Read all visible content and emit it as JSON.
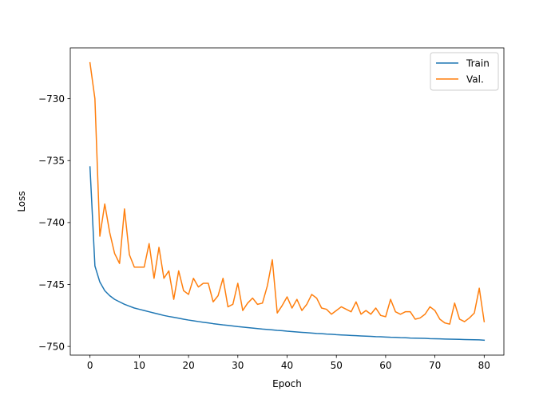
{
  "chart_data": {
    "type": "line",
    "title": "",
    "xlabel": "Epoch",
    "ylabel": "Loss",
    "xlim": [
      -4,
      84
    ],
    "ylim": [
      -750.7,
      -725.9
    ],
    "xticks": [
      0,
      10,
      20,
      30,
      40,
      50,
      60,
      70,
      80
    ],
    "xtick_labels": [
      "0",
      "10",
      "20",
      "30",
      "40",
      "50",
      "60",
      "70",
      "80"
    ],
    "yticks": [
      -730,
      -735,
      -740,
      -745,
      -750
    ],
    "ytick_labels": [
      "−730",
      "−735",
      "−740",
      "−745",
      "−750"
    ],
    "grid": false,
    "legend_position": "top-right",
    "series": [
      {
        "name": "Train",
        "color": "#1f77b4",
        "x": [
          0,
          1,
          2,
          3,
          4,
          5,
          6,
          7,
          8,
          9,
          10,
          11,
          12,
          13,
          14,
          15,
          16,
          17,
          18,
          19,
          20,
          21,
          22,
          23,
          24,
          25,
          26,
          27,
          28,
          29,
          30,
          31,
          32,
          33,
          34,
          35,
          36,
          37,
          38,
          39,
          40,
          41,
          42,
          43,
          44,
          45,
          46,
          47,
          48,
          49,
          50,
          51,
          52,
          53,
          54,
          55,
          56,
          57,
          58,
          59,
          60,
          61,
          62,
          63,
          64,
          65,
          66,
          67,
          68,
          69,
          70,
          71,
          72,
          73,
          74,
          75,
          76,
          77,
          78,
          79,
          80
        ],
        "values": [
          -735.5,
          -743.5,
          -744.8,
          -745.5,
          -745.9,
          -746.2,
          -746.4,
          -746.6,
          -746.75,
          -746.9,
          -747.0,
          -747.1,
          -747.2,
          -747.3,
          -747.4,
          -747.5,
          -747.58,
          -747.65,
          -747.72,
          -747.8,
          -747.87,
          -747.93,
          -747.99,
          -748.05,
          -748.1,
          -748.16,
          -748.21,
          -748.26,
          -748.3,
          -748.35,
          -748.4,
          -748.44,
          -748.48,
          -748.52,
          -748.56,
          -748.6,
          -748.63,
          -748.66,
          -748.7,
          -748.73,
          -748.77,
          -748.8,
          -748.83,
          -748.86,
          -748.89,
          -748.92,
          -748.95,
          -748.97,
          -749.0,
          -749.02,
          -749.05,
          -749.07,
          -749.09,
          -749.11,
          -749.13,
          -749.15,
          -749.17,
          -749.19,
          -749.21,
          -749.22,
          -749.24,
          -749.26,
          -749.27,
          -749.29,
          -749.3,
          -749.32,
          -749.33,
          -749.34,
          -749.35,
          -749.37,
          -749.38,
          -749.39,
          -749.4,
          -749.41,
          -749.42,
          -749.43,
          -749.44,
          -749.45,
          -749.46,
          -749.47,
          -749.5
        ]
      },
      {
        "name": "Val.",
        "color": "#ff7f0e",
        "x": [
          0,
          1,
          2,
          3,
          4,
          5,
          6,
          7,
          8,
          9,
          10,
          11,
          12,
          13,
          14,
          15,
          16,
          17,
          18,
          19,
          20,
          21,
          22,
          23,
          24,
          25,
          26,
          27,
          28,
          29,
          30,
          31,
          32,
          33,
          34,
          35,
          36,
          37,
          38,
          39,
          40,
          41,
          42,
          43,
          44,
          45,
          46,
          47,
          48,
          49,
          50,
          51,
          52,
          53,
          54,
          55,
          56,
          57,
          58,
          59,
          60,
          61,
          62,
          63,
          64,
          65,
          66,
          67,
          68,
          69,
          70,
          71,
          72,
          73,
          74,
          75,
          76,
          77,
          78,
          79,
          80
        ],
        "values": [
          -727.1,
          -730.0,
          -741.1,
          -738.5,
          -740.8,
          -742.5,
          -743.3,
          -738.9,
          -742.6,
          -743.6,
          -743.6,
          -743.6,
          -741.7,
          -744.5,
          -742.0,
          -744.5,
          -743.9,
          -746.2,
          -743.9,
          -745.5,
          -745.8,
          -744.5,
          -745.2,
          -744.9,
          -744.9,
          -746.4,
          -745.9,
          -744.5,
          -746.8,
          -746.6,
          -744.9,
          -747.1,
          -746.5,
          -746.1,
          -746.6,
          -746.5,
          -745.1,
          -743.0,
          -747.3,
          -746.7,
          -746.0,
          -746.9,
          -746.2,
          -747.1,
          -746.6,
          -745.8,
          -746.1,
          -746.9,
          -747.0,
          -747.4,
          -747.1,
          -746.8,
          -747.0,
          -747.2,
          -746.4,
          -747.4,
          -747.1,
          -747.4,
          -746.9,
          -747.5,
          -747.6,
          -746.2,
          -747.2,
          -747.4,
          -747.2,
          -747.2,
          -747.8,
          -747.7,
          -747.4,
          -746.8,
          -747.1,
          -747.8,
          -748.1,
          -748.2,
          -746.5,
          -747.8,
          -748.0,
          -747.7,
          -747.3,
          -745.3,
          -748.0
        ]
      }
    ]
  }
}
